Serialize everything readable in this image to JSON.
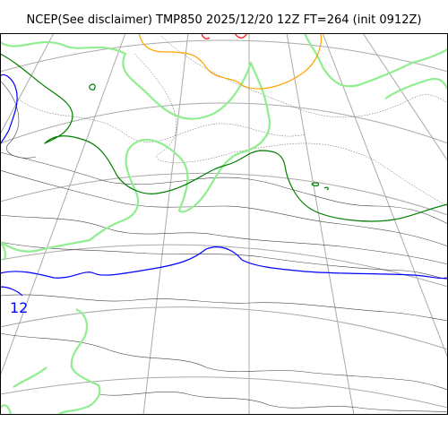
{
  "title": "NCEP(See disclaimer) TMP850 2025/12/20 12Z FT=264 (init 0912Z)",
  "contour_labels": [
    {
      "id": "label-12",
      "text": "12",
      "color": "#0000ff"
    }
  ],
  "contour_colors": {
    "coast": "#90ee90",
    "isotherm_green": "#008000",
    "isotherm_blue": "#0000ff",
    "isotherm_orange": "#ffa500",
    "isotherm_red": "#ff0000",
    "minor_contours": "#444444"
  }
}
